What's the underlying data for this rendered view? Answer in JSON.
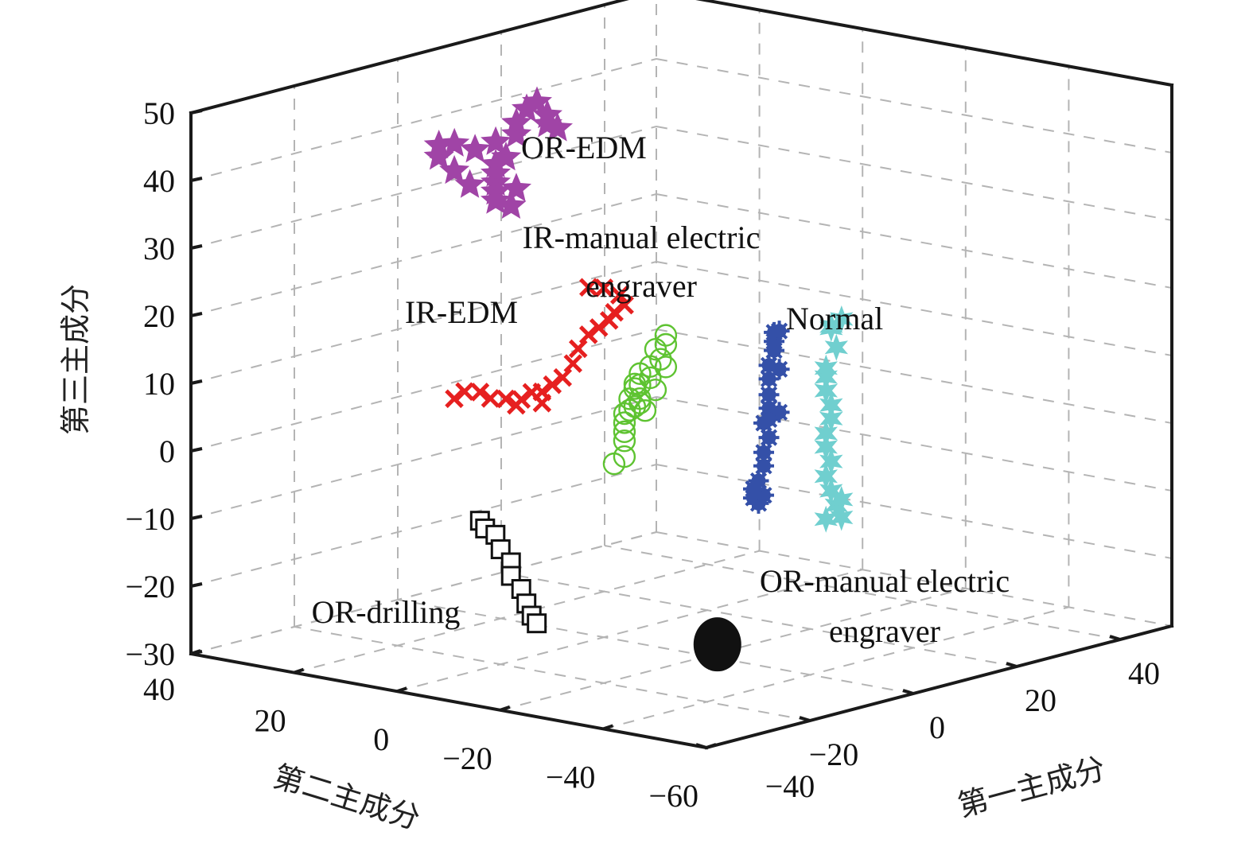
{
  "chart_data": {
    "type": "scatter",
    "projection": "3d",
    "title": "",
    "xlabel": "第一主成分",
    "ylabel": "第二主成分",
    "zlabel": "第三主成分",
    "xlim": [
      -40,
      50
    ],
    "ylim": [
      -60,
      40
    ],
    "zlim": [
      -30,
      50
    ],
    "xticks": [
      -40,
      -20,
      0,
      20,
      40
    ],
    "yticks": [
      40,
      20,
      0,
      -20,
      -40,
      -60
    ],
    "zticks": [
      50,
      40,
      30,
      20,
      10,
      0,
      -10,
      -20,
      -30
    ],
    "xtick_labels": [
      "−40",
      "−20",
      "0",
      "20",
      "40"
    ],
    "ytick_labels": [
      "40",
      "20",
      "0",
      "−20",
      "−40",
      "−60"
    ],
    "ztick_labels": [
      "50",
      "40",
      "30",
      "20",
      "10",
      "0",
      "−10",
      "−20",
      "−30"
    ],
    "grid": true,
    "series": [
      {
        "name": "OR-EDM",
        "label": "OR-EDM",
        "marker": "star",
        "color": "#a044a6",
        "points": [
          [
            -5,
            16,
            36
          ],
          [
            -4,
            17,
            37
          ],
          [
            -3,
            18,
            38
          ],
          [
            -2,
            17,
            39
          ],
          [
            -6,
            15,
            35
          ],
          [
            -7,
            14,
            34
          ],
          [
            -5,
            13,
            33
          ],
          [
            -3,
            14,
            35
          ],
          [
            -8,
            18,
            36
          ],
          [
            -9,
            20,
            38
          ],
          [
            -10,
            22,
            40
          ],
          [
            -8,
            24,
            41
          ],
          [
            -6,
            23,
            41
          ],
          [
            -4,
            21,
            40
          ],
          [
            -2,
            19,
            41
          ],
          [
            0,
            17,
            42
          ],
          [
            -1,
            16,
            44
          ],
          [
            0,
            15,
            46
          ],
          [
            1,
            14,
            47
          ],
          [
            2,
            13,
            45
          ],
          [
            1,
            12,
            44
          ],
          [
            3,
            12,
            43
          ]
        ]
      },
      {
        "name": "IR-manual electric engraver",
        "label": [
          "IR-manual electric",
          "engraver"
        ],
        "marker": "circle",
        "color": "#5ec331",
        "points": [
          [
            -12,
            -14,
            0
          ],
          [
            -11,
            -15,
            1
          ],
          [
            -10,
            -14,
            3
          ],
          [
            -9,
            -13,
            4
          ],
          [
            -8,
            -12,
            5
          ],
          [
            -7,
            -11,
            6
          ],
          [
            -8,
            -13,
            7
          ],
          [
            -9,
            -15,
            8
          ],
          [
            -10,
            -17,
            9
          ],
          [
            -11,
            -18,
            10
          ],
          [
            -10,
            -16,
            11
          ],
          [
            -8,
            -14,
            11
          ],
          [
            -6,
            -13,
            12
          ],
          [
            -5,
            -14,
            13
          ],
          [
            -4,
            -15,
            14
          ],
          [
            -3,
            -15,
            16
          ],
          [
            -2,
            -14,
            17
          ],
          [
            -3,
            -13,
            15
          ],
          [
            -5,
            -12,
            10
          ],
          [
            -6,
            -11,
            8
          ],
          [
            -4,
            -12,
            6
          ],
          [
            -3,
            -13,
            9
          ],
          [
            -4,
            -16,
            13
          ],
          [
            -7,
            -16,
            12
          ]
        ]
      },
      {
        "name": "IR-EDM",
        "label": "IR-EDM",
        "marker": "x",
        "color": "#e62020",
        "points": [
          [
            -14,
            15,
            6
          ],
          [
            -13,
            14,
            7
          ],
          [
            -12,
            12,
            7
          ],
          [
            -11,
            11,
            6
          ],
          [
            -10,
            9,
            6
          ],
          [
            -9,
            7,
            6
          ],
          [
            -8,
            6,
            7
          ],
          [
            -7,
            5,
            7
          ],
          [
            -6,
            4,
            8
          ],
          [
            -5,
            3,
            9
          ],
          [
            -4,
            2,
            11
          ],
          [
            -3,
            2,
            13
          ],
          [
            -2,
            1,
            15
          ],
          [
            -1,
            0,
            16
          ],
          [
            0,
            -1,
            17
          ],
          [
            1,
            -1,
            18
          ],
          [
            2,
            -2,
            19
          ],
          [
            3,
            0,
            20
          ],
          [
            2,
            2,
            21
          ],
          [
            1,
            4,
            21
          ],
          [
            -9,
            8,
            5
          ],
          [
            -6,
            6,
            5
          ]
        ]
      },
      {
        "name": "Normal",
        "label": "Normal",
        "marker": "asterisk",
        "color": "#3450a8",
        "points": [
          [
            -6,
            -36,
            -4
          ],
          [
            -5,
            -36,
            -3
          ],
          [
            -5,
            -35,
            -1
          ],
          [
            -4,
            -35,
            1
          ],
          [
            -4,
            -35,
            3
          ],
          [
            -3,
            -35,
            5
          ],
          [
            -3,
            -34,
            7
          ],
          [
            -2,
            -34,
            9
          ],
          [
            -2,
            -34,
            11
          ],
          [
            -1,
            -33,
            13
          ],
          [
            -1,
            -33,
            15
          ],
          [
            0,
            -33,
            17
          ],
          [
            1,
            -32,
            18
          ],
          [
            2,
            -31,
            19
          ],
          [
            3,
            -31,
            19
          ],
          [
            0,
            -34,
            8
          ],
          [
            -1,
            -33,
            7
          ],
          [
            4,
            -30,
            13
          ],
          [
            -7,
            -36,
            -3
          ],
          [
            -6,
            -35,
            -2
          ]
        ]
      },
      {
        "name": "OR-manual electric engraver",
        "label": [
          "OR-manual electric",
          "engraver"
        ],
        "marker": "hexagram",
        "color": "#70cfcf",
        "points": [
          [
            20,
            -25,
            -11
          ],
          [
            20,
            -24,
            -9
          ],
          [
            20,
            -23,
            -7
          ],
          [
            21,
            -23,
            -5
          ],
          [
            21,
            -22,
            -3
          ],
          [
            21,
            -22,
            -1
          ],
          [
            22,
            -22,
            1
          ],
          [
            22,
            -22,
            3
          ],
          [
            22,
            -21,
            5
          ],
          [
            22,
            -21,
            7
          ],
          [
            23,
            -20,
            8
          ],
          [
            24,
            -21,
            11
          ],
          [
            24,
            -20,
            14
          ],
          [
            23,
            -21,
            14
          ],
          [
            25,
            -21,
            15
          ],
          [
            19,
            -24,
            -13
          ],
          [
            21,
            -25,
            -13
          ],
          [
            20,
            -26,
            -10
          ]
        ]
      },
      {
        "name": "OR-drilling",
        "label": "OR-drilling",
        "marker": "square",
        "color": "#111111",
        "points": [
          [
            -18,
            6,
            -10
          ],
          [
            -18,
            5,
            -11
          ],
          [
            -17,
            4,
            -12
          ],
          [
            -17,
            3,
            -14
          ],
          [
            -16,
            2,
            -16
          ],
          [
            -16,
            2,
            -18
          ],
          [
            -15,
            1,
            -20
          ],
          [
            -15,
            0,
            -22
          ],
          [
            -14,
            0,
            -24
          ],
          [
            -14,
            -1,
            -25
          ],
          [
            -1,
            -22,
            -28
          ],
          [
            0,
            -22,
            -27
          ],
          [
            1,
            -23,
            -28
          ],
          [
            0,
            -21,
            -29
          ],
          [
            -1,
            -23,
            -29
          ],
          [
            1,
            -21,
            -28
          ],
          [
            0,
            -24,
            -28
          ],
          [
            -2,
            -22,
            -27
          ]
        ]
      }
    ],
    "legend": "none (in-plot text annotations)"
  }
}
